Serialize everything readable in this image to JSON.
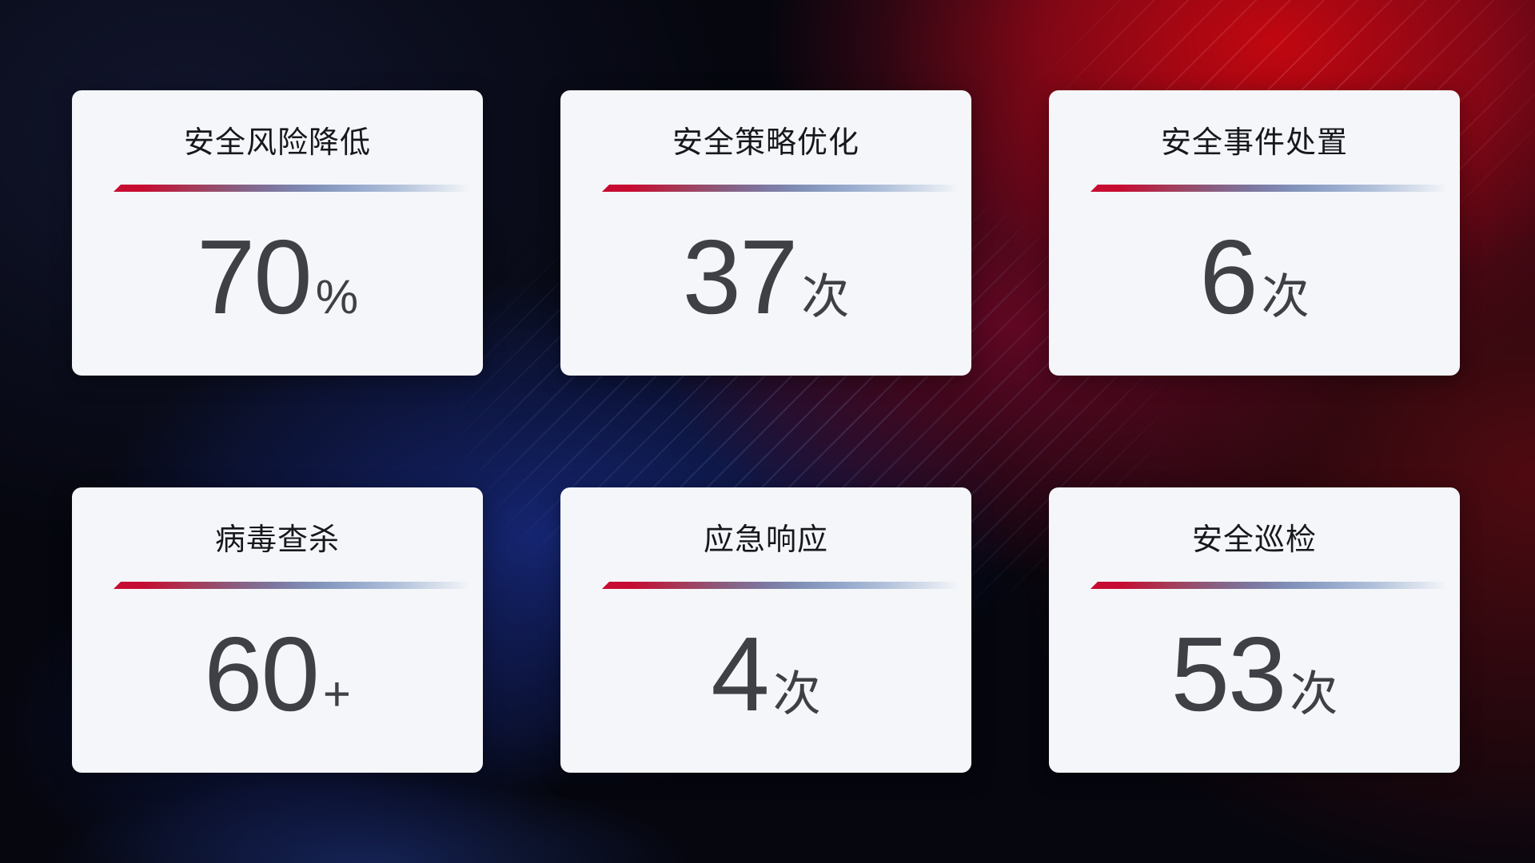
{
  "page": {
    "description_colors": {
      "background_base": "#05060E",
      "background_red_glow": "#C50710",
      "background_blue_glow": "#1A2E8E",
      "background_maroon": "#470A0E",
      "card_bg": "#F4F6F9",
      "title_text": "#17181D",
      "value_text": "#3F4046",
      "divider_start": "#C60C31",
      "divider_end": "#D3DCEA"
    }
  },
  "cards": [
    {
      "title": "安全风险降低",
      "value": "70",
      "unit": "%"
    },
    {
      "title": "安全策略优化",
      "value": "37",
      "unit": "次"
    },
    {
      "title": "安全事件处置",
      "value": "6",
      "unit": "次"
    },
    {
      "title": "病毒查杀",
      "value": "60",
      "unit": "+"
    },
    {
      "title": "应急响应",
      "value": "4",
      "unit": "次"
    },
    {
      "title": "安全巡检",
      "value": "53",
      "unit": "次"
    }
  ]
}
